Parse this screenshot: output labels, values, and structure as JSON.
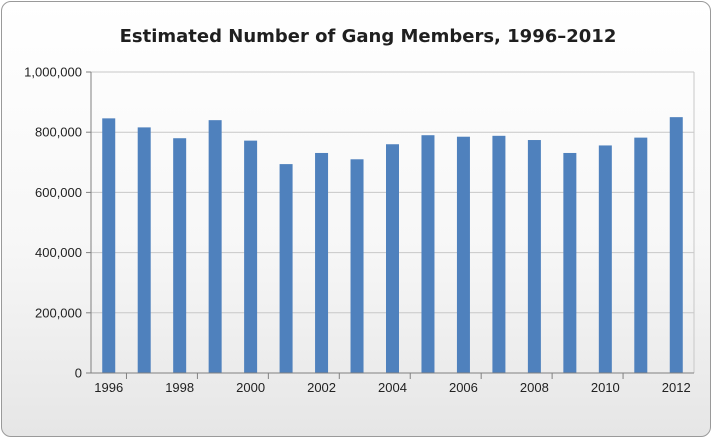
{
  "chart_data": {
    "type": "bar",
    "title": "Estimated Number of Gang Members, 1996–2012",
    "xlabel": "",
    "ylabel": "",
    "categories": [
      "1996",
      "1997",
      "1998",
      "1999",
      "2000",
      "2001",
      "2002",
      "2003",
      "2004",
      "2005",
      "2006",
      "2007",
      "2008",
      "2009",
      "2010",
      "2011",
      "2012"
    ],
    "x_tick_labels": [
      "1996",
      "1998",
      "2000",
      "2002",
      "2004",
      "2006",
      "2008",
      "2010",
      "2012"
    ],
    "values": [
      846000,
      816000,
      780000,
      840000,
      772000,
      694000,
      731000,
      710000,
      760000,
      790000,
      785000,
      788000,
      774000,
      731000,
      756000,
      782000,
      850000
    ],
    "y_tick_labels": [
      "0",
      "200,000",
      "400,000",
      "600,000",
      "800,000",
      "1,000,000"
    ],
    "ylim": [
      0,
      1000000
    ],
    "grid": true,
    "legend": "none",
    "bar_color": "#4f81bd",
    "grid_color": "#c8c8c8"
  }
}
